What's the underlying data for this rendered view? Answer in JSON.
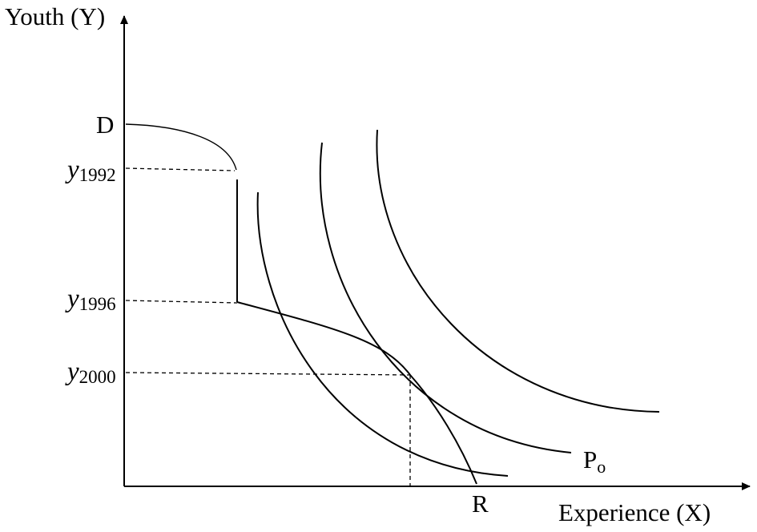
{
  "axes": {
    "y_title": "Youth (Y)",
    "x_title": "Experience (X)"
  },
  "points": {
    "D": "D",
    "R": "R",
    "P": "P",
    "P_sub": "o"
  },
  "y_ticks": [
    {
      "main": "y",
      "sub": "1992"
    },
    {
      "main": "y",
      "sub": "1996"
    },
    {
      "main": "y",
      "sub": "2000"
    }
  ]
}
